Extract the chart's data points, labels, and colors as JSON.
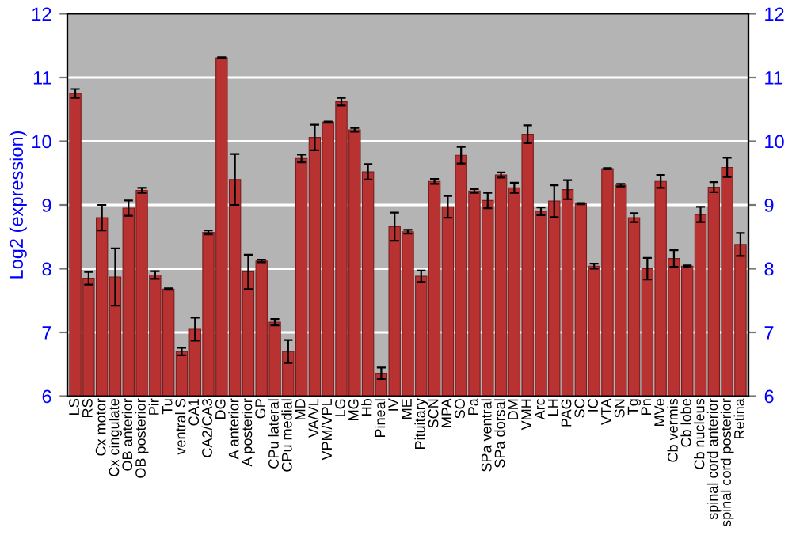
{
  "chart_data": {
    "type": "bar",
    "ylabel": "Log2 (expression)",
    "categories": [
      "LS",
      "RS",
      "Cx motor",
      "Cx cingulate",
      "OB anterior",
      "OB posterior",
      "Pir",
      "Tu",
      "ventral S",
      "CA1",
      "CA2/CA3",
      "DG",
      "A anterior",
      "A posterior",
      "GP",
      "CPu lateral",
      "CPu medial",
      "MD",
      "VA/VL",
      "VPM/VPL",
      "LG",
      "MG",
      "Hb",
      "Pineal",
      "IV",
      "ME",
      "Pituitary",
      "SCN",
      "MPA",
      "SO",
      "Pa",
      "SPa ventral",
      "SPa dorsal",
      "DM",
      "VMH",
      "Arc",
      "LH",
      "PAG",
      "SC",
      "IC",
      "VTA",
      "SN",
      "Tg",
      "Pn",
      "MVe",
      "Cb vermis",
      "Cb lobe",
      "Cb nucleus",
      "spinal cord anterior",
      "spinal cord posterior",
      "Retina"
    ],
    "series": [
      {
        "color": "#b83232",
        "values": [
          10.75,
          7.85,
          8.8,
          7.87,
          8.95,
          9.23,
          7.9,
          7.68,
          6.7,
          7.05,
          8.57,
          11.31,
          9.4,
          7.95,
          8.12,
          7.16,
          6.7,
          9.73,
          10.06,
          10.3,
          10.62,
          10.18,
          9.52,
          6.36,
          8.66,
          8.58,
          7.88,
          9.37,
          8.97,
          9.78,
          9.22,
          9.07,
          9.47,
          9.27,
          10.11,
          8.9,
          9.06,
          9.24,
          9.02,
          8.04,
          9.57,
          9.31,
          8.8,
          8.0,
          9.37,
          8.16,
          8.04,
          8.85,
          9.28,
          9.59,
          8.38
        ],
        "errors": [
          0.07,
          0.1,
          0.2,
          0.45,
          0.12,
          0.04,
          0.06,
          0.01,
          0.06,
          0.18,
          0.03,
          0.01,
          0.4,
          0.27,
          0.02,
          0.05,
          0.18,
          0.06,
          0.2,
          0.01,
          0.06,
          0.03,
          0.12,
          0.09,
          0.22,
          0.03,
          0.09,
          0.04,
          0.17,
          0.13,
          0.03,
          0.12,
          0.04,
          0.08,
          0.14,
          0.06,
          0.25,
          0.15,
          0.01,
          0.04,
          0.01,
          0.02,
          0.07,
          0.17,
          0.1,
          0.13,
          0.01,
          0.12,
          0.08,
          0.15,
          0.18
        ]
      }
    ],
    "ylim": [
      6,
      12
    ],
    "yticks": [
      6,
      7,
      8,
      9,
      10,
      11,
      12
    ],
    "y2lim": [
      6,
      12
    ],
    "y2ticks": [
      6,
      7,
      8,
      9,
      10,
      11,
      12
    ],
    "grid": "y"
  }
}
